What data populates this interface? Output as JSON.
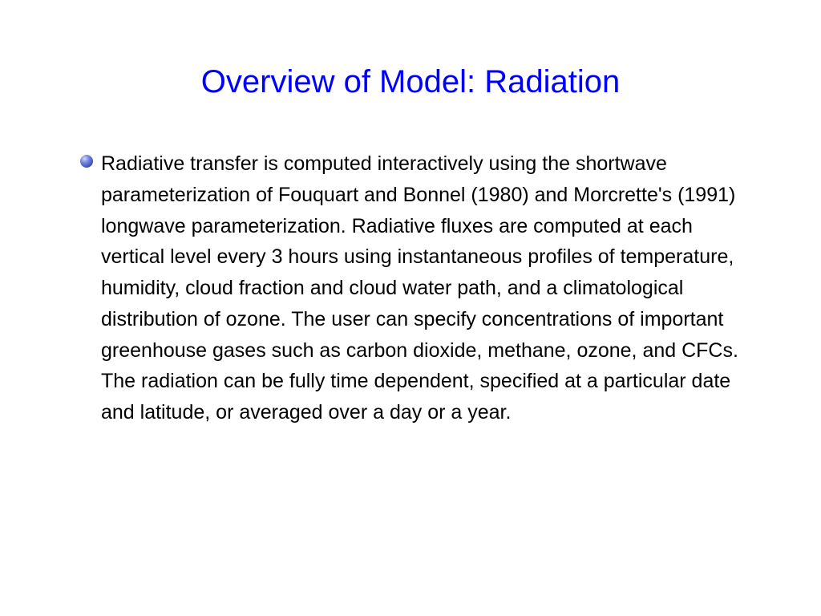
{
  "title": "Overview of Model: Radiation",
  "body": "Radiative transfer is computed interactively using the shortwave parameterization of Fouquart and Bonnel (1980) and Morcrette's (1991) longwave parameterization.  Radiative fluxes are computed at each vertical level every 3 hours using instantaneous profiles of temperature, humidity, cloud fraction and cloud water path, and a climatological distribution of ozone.  The user can specify concentrations of important greenhouse gases such as carbon dioxide, methane, ozone, and CFCs.  The radiation can be fully time dependent, specified at a particular date and latitude, or averaged over a day or a year.",
  "colors": {
    "title": "#0000ff",
    "body": "#000000",
    "background": "#ffffff"
  },
  "fonts": {
    "title_size": 40,
    "body_size": 25
  }
}
